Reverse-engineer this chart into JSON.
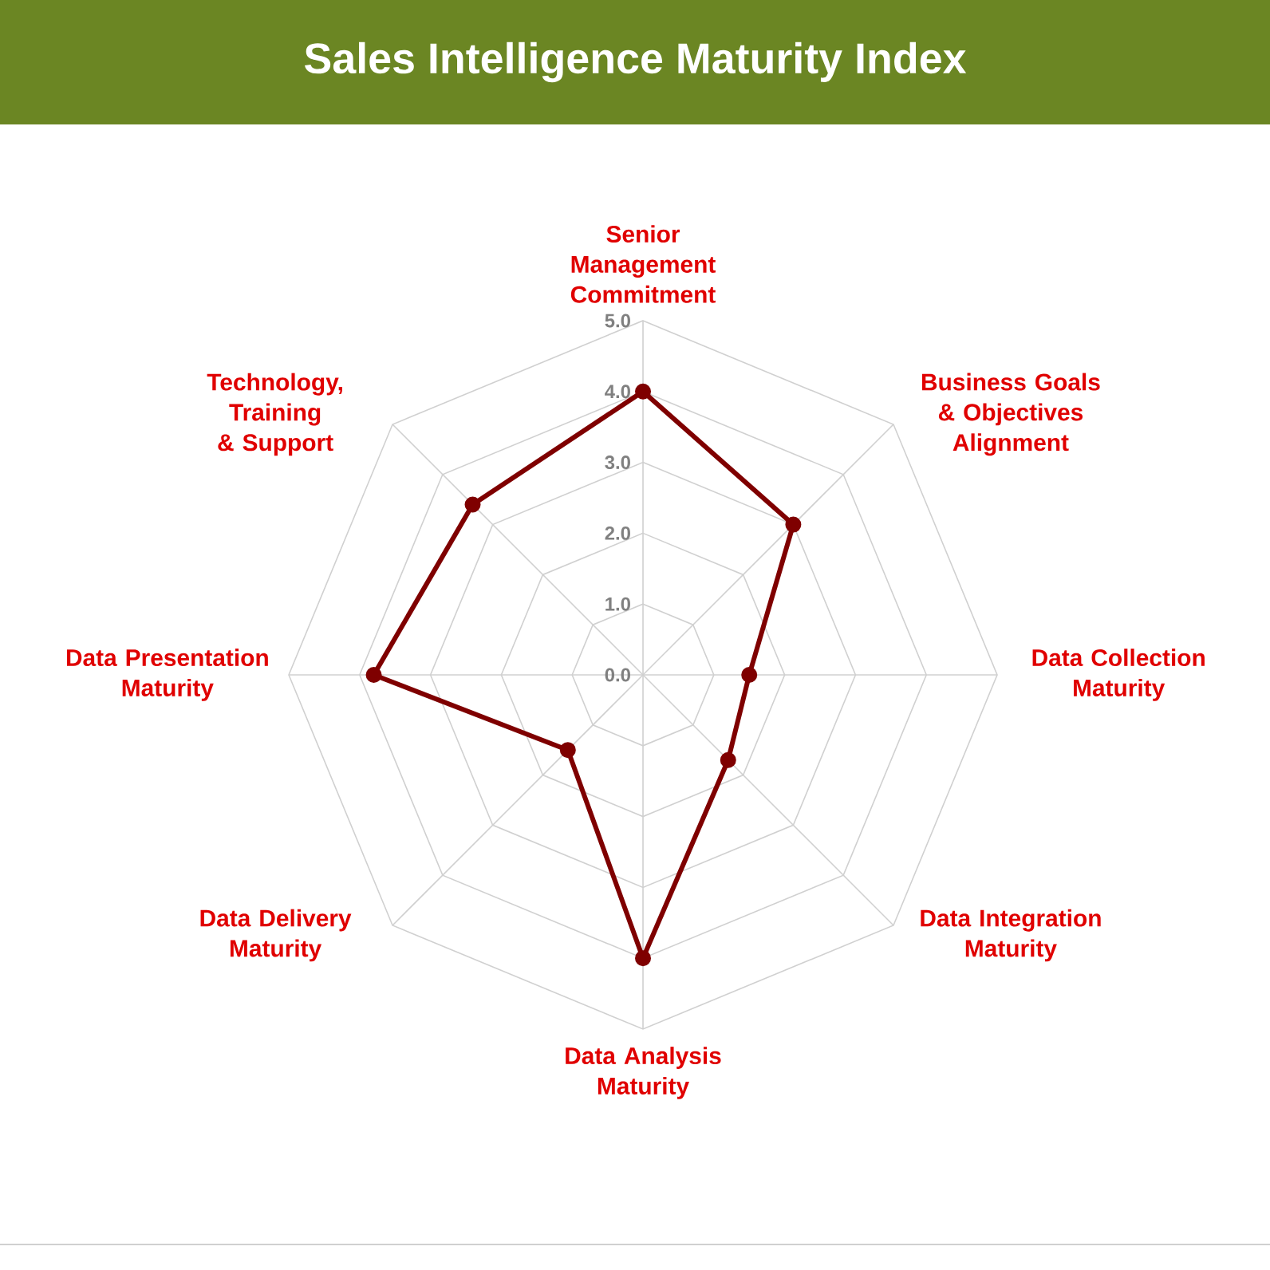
{
  "chart_data": {
    "type": "radar",
    "title": "Sales Intelligence Maturity Index",
    "categories": [
      "Senior Management Commitment",
      "Business Goals & Objectives Alignment",
      "Data Collection Maturity",
      "Data Integration Maturity",
      "Data Analysis Maturity",
      "Data Delivery Maturity",
      "Data Presentation Maturity",
      "Technology, Training & Support"
    ],
    "series": [
      {
        "color": "#7f0000",
        "values": [
          4.0,
          3.0,
          1.5,
          1.7,
          4.0,
          1.5,
          3.8,
          3.4
        ]
      }
    ],
    "ylim": [
      0,
      5
    ],
    "yticks": [
      {
        "value": 0,
        "label": "0.0"
      },
      {
        "value": 1,
        "label": "1.0"
      },
      {
        "value": 2,
        "label": "2.0"
      },
      {
        "value": 3,
        "label": "3.0"
      },
      {
        "value": 4,
        "label": "4.0"
      },
      {
        "value": 5,
        "label": "5.0"
      }
    ],
    "grid": true,
    "marker": "circle",
    "line_style": "solid"
  }
}
